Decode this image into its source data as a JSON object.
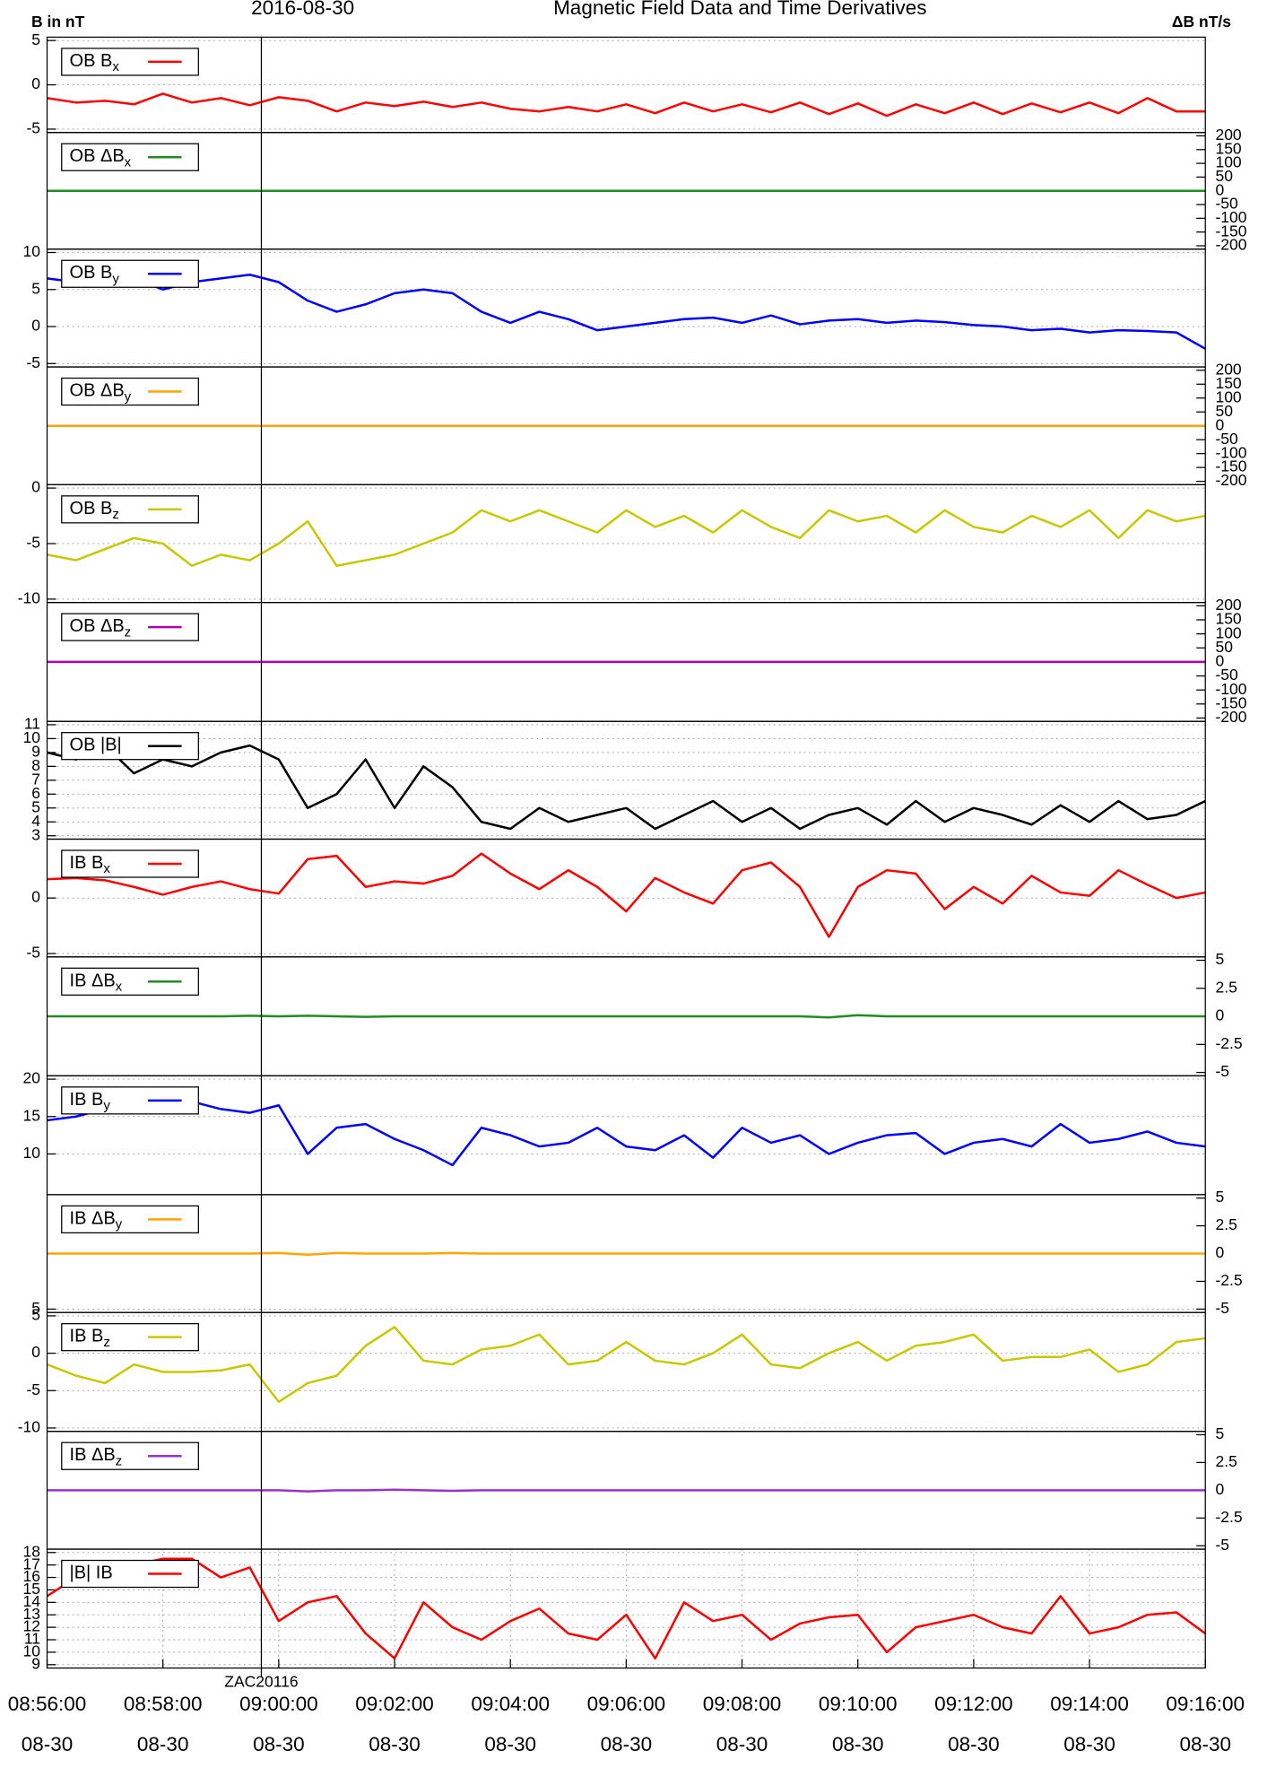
{
  "chart_data": {
    "type": "line",
    "date": "2016-08-30",
    "title": "Magnetic Field Data and Time Derivatives",
    "ylabel": "B in nT",
    "y2label": "ΔB nT/s",
    "x": [
      "08:56:00",
      "08:56:30",
      "08:57:00",
      "08:57:30",
      "08:58:00",
      "08:58:30",
      "08:59:00",
      "08:59:30",
      "09:00:00",
      "09:00:30",
      "09:01:00",
      "09:01:30",
      "09:02:00",
      "09:02:30",
      "09:03:00",
      "09:03:30",
      "09:04:00",
      "09:04:30",
      "09:05:00",
      "09:05:30",
      "09:06:00",
      "09:06:30",
      "09:07:00",
      "09:07:30",
      "09:08:00",
      "09:08:30",
      "09:09:00",
      "09:09:30",
      "09:10:00",
      "09:10:30",
      "09:11:00",
      "09:11:30",
      "09:12:00",
      "09:12:30",
      "09:13:00",
      "09:13:30",
      "09:14:00",
      "09:14:30",
      "09:15:00",
      "09:15:30",
      "09:16:00"
    ],
    "xlim": [
      "08:56:00",
      "09:16:00"
    ],
    "xticks": [
      "08:56:00",
      "08:58:00",
      "09:00:00",
      "09:02:00",
      "09:04:00",
      "09:06:00",
      "09:08:00",
      "09:10:00",
      "09:12:00",
      "09:14:00",
      "09:16:00"
    ],
    "xtick_date": "08-30",
    "annotation": {
      "x": "08:59:42",
      "label": "ZAC20116"
    },
    "grid": true,
    "panels": [
      {
        "ylim": [
          -5,
          5
        ],
        "yticks": [
          -5,
          0,
          5
        ],
        "series": [
          {
            "name": "OB B",
            "subscript": "x",
            "color": "#ff0000",
            "values": [
              -1.5,
              -2,
              -1.8,
              -2.2,
              -1,
              -2,
              -1.5,
              -2.3,
              -1.4,
              -1.8,
              -3,
              -2,
              -2.4,
              -1.9,
              -2.5,
              -2,
              -2.7,
              -3,
              -2.5,
              -3,
              -2.2,
              -3.2,
              -2,
              -3,
              -2.2,
              -3.1,
              -2,
              -3.3,
              -2.1,
              -3.5,
              -2.2,
              -3.2,
              -2,
              -3.3,
              -2.1,
              -3.1,
              -2,
              -3.2,
              -1.5,
              -3,
              -3
            ]
          }
        ]
      },
      {
        "y2lim": [
          -200,
          200
        ],
        "y2ticks": [
          -200,
          -150,
          -100,
          -50,
          0,
          50,
          100,
          150,
          200
        ],
        "series": [
          {
            "name": "OB ΔB",
            "subscript": "x",
            "color": "#228b22",
            "axis": "y2",
            "values": [
              0,
              0,
              0,
              0,
              0,
              0,
              0,
              0,
              0,
              0,
              0,
              0,
              0,
              0,
              0,
              0,
              0,
              0,
              0,
              0,
              0,
              0,
              0,
              0,
              0,
              0,
              0,
              0,
              0,
              0,
              0,
              0,
              0,
              0,
              0,
              0,
              0,
              0,
              0,
              0,
              0
            ]
          }
        ]
      },
      {
        "ylim": [
          -5,
          10
        ],
        "yticks": [
          -5,
          0,
          5,
          10
        ],
        "series": [
          {
            "name": "OB B",
            "subscript": "y",
            "color": "#0000ff",
            "values": [
              6.5,
              6,
              5.5,
              6.5,
              5,
              6,
              6.5,
              7,
              6,
              3.5,
              2,
              3,
              4.5,
              5,
              4.5,
              2,
              0.5,
              2,
              1,
              -0.5,
              0,
              0.5,
              1,
              1.2,
              0.5,
              1.5,
              0.3,
              0.8,
              1,
              0.5,
              0.8,
              0.6,
              0.2,
              0,
              -0.5,
              -0.3,
              -0.8,
              -0.5,
              -0.6,
              -0.8,
              -3
            ]
          }
        ]
      },
      {
        "y2lim": [
          -200,
          200
        ],
        "y2ticks": [
          -200,
          -150,
          -100,
          -50,
          0,
          50,
          100,
          150,
          200
        ],
        "series": [
          {
            "name": "OB ΔB",
            "subscript": "y",
            "color": "#ffa500",
            "axis": "y2",
            "values": [
              0,
              0,
              0,
              0,
              0,
              0,
              0,
              0,
              0,
              0,
              0,
              0,
              0,
              0,
              0,
              0,
              0,
              0,
              0,
              0,
              0,
              0,
              0,
              0,
              0,
              0,
              0,
              0,
              0,
              0,
              0,
              0,
              0,
              0,
              0,
              0,
              0,
              0,
              0,
              0,
              0
            ]
          }
        ]
      },
      {
        "ylim": [
          -10,
          0
        ],
        "yticks": [
          -10,
          -5,
          0
        ],
        "series": [
          {
            "name": "OB B",
            "subscript": "z",
            "color": "#c8c800",
            "values": [
              -6,
              -6.5,
              -5.5,
              -4.5,
              -5,
              -7,
              -6,
              -6.5,
              -5,
              -3,
              -7,
              -6.5,
              -6,
              -5,
              -4,
              -2,
              -3,
              -2,
              -3,
              -4,
              -2,
              -3.5,
              -2.5,
              -4,
              -2,
              -3.5,
              -4.5,
              -2,
              -3,
              -2.5,
              -4,
              -2,
              -3.5,
              -4,
              -2.5,
              -3.5,
              -2,
              -4.5,
              -2,
              -3,
              -2.5
            ]
          }
        ]
      },
      {
        "y2lim": [
          -200,
          200
        ],
        "y2ticks": [
          -200,
          -150,
          -100,
          -50,
          0,
          50,
          100,
          150,
          200
        ],
        "series": [
          {
            "name": "OB ΔB",
            "subscript": "z",
            "color": "#b000b0",
            "axis": "y2",
            "values": [
              0,
              0,
              0,
              0,
              0,
              0,
              0,
              0,
              0,
              0,
              0,
              0,
              0,
              0,
              0,
              0,
              0,
              0,
              0,
              0,
              0,
              0,
              0,
              0,
              0,
              0,
              0,
              0,
              0,
              0,
              0,
              0,
              0,
              0,
              0,
              0,
              0,
              0,
              0,
              0,
              0
            ]
          }
        ]
      },
      {
        "ylim": [
          3,
          11
        ],
        "yticks": [
          3,
          4,
          5,
          6,
          7,
          8,
          9,
          10,
          11
        ],
        "series": [
          {
            "name": "OB |B|",
            "color": "#000000",
            "values": [
              9,
              8.5,
              9.5,
              7.5,
              8.5,
              8,
              9,
              9.5,
              8.5,
              5,
              6,
              8.5,
              5,
              8,
              6.5,
              4,
              3.5,
              5,
              4,
              4.5,
              5,
              3.5,
              4.5,
              5.5,
              4,
              5,
              3.5,
              4.5,
              5,
              3.8,
              5.5,
              4,
              5,
              4.5,
              3.8,
              5.2,
              4,
              5.5,
              4.2,
              4.5,
              5.5
            ]
          }
        ]
      },
      {
        "ylim": [
          -5,
          5
        ],
        "yticks": [
          -5,
          0
        ],
        "series": [
          {
            "name": "IB B",
            "subscript": "x",
            "color": "#ff0000",
            "values": [
              1.7,
              1.8,
              1.6,
              1.0,
              0.3,
              1.0,
              1.5,
              0.8,
              0.4,
              3.5,
              3.8,
              1.0,
              1.5,
              1.3,
              2.0,
              4.0,
              2.2,
              0.8,
              2.5,
              1.0,
              -1.2,
              1.8,
              0.5,
              -0.5,
              2.5,
              3.2,
              1.0,
              -3.5,
              1.0,
              2.5,
              2.2,
              -1.0,
              1.0,
              -0.5,
              2.0,
              0.5,
              0.2,
              2.5,
              1.2,
              0.0,
              0.5
            ]
          }
        ]
      },
      {
        "y2lim": [
          -5,
          5
        ],
        "y2ticks": [
          -5,
          -2.5,
          0,
          2.5,
          5
        ],
        "series": [
          {
            "name": "IB ΔB",
            "subscript": "x",
            "color": "#228b22",
            "axis": "y2",
            "values": [
              0,
              0,
              0,
              0,
              0,
              0,
              0,
              0.05,
              0,
              0.05,
              0,
              -0.05,
              0,
              0,
              0,
              0,
              0,
              0,
              0,
              0,
              0,
              0,
              0,
              0,
              0,
              0,
              0,
              -0.1,
              0.1,
              0,
              0,
              0,
              0,
              0,
              0,
              0,
              0,
              0,
              0,
              0,
              0
            ]
          }
        ]
      },
      {
        "ylim": [
          5,
          20
        ],
        "yticks": [
          10,
          15,
          20
        ],
        "series": [
          {
            "name": "IB B",
            "subscript": "y",
            "color": "#0000ff",
            "values": [
              14.5,
              15,
              16,
              16.5,
              17,
              17,
              16,
              15.5,
              16.5,
              10,
              13.5,
              14,
              12,
              10.5,
              8.5,
              13.5,
              12.5,
              11,
              11.5,
              13.5,
              11,
              10.5,
              12.5,
              9.5,
              13.5,
              11.5,
              12.5,
              10,
              11.5,
              12.5,
              12.8,
              10,
              11.5,
              12,
              11,
              14,
              11.5,
              12,
              13,
              11.5,
              11
            ]
          }
        ]
      },
      {
        "ylim": [
          5,
          20
        ],
        "yticks": [
          5
        ],
        "y2lim": [
          -5,
          5
        ],
        "y2ticks": [
          -5,
          -2.5,
          0,
          2.5,
          5
        ],
        "series": [
          {
            "name": "IB ΔB",
            "subscript": "y",
            "color": "#ffa500",
            "axis": "y2",
            "values": [
              0,
              0,
              0,
              0,
              0,
              0,
              0,
              0,
              0.05,
              -0.1,
              0.05,
              0,
              0,
              0,
              0.05,
              0,
              0,
              0,
              0,
              0,
              0,
              0,
              0,
              0,
              0,
              0,
              0,
              0,
              0,
              0,
              0,
              0,
              0,
              0,
              0,
              0,
              0,
              0,
              0,
              0,
              0
            ]
          }
        ]
      },
      {
        "ylim": [
          -10,
          5
        ],
        "yticks": [
          -10,
          -5,
          0,
          5
        ],
        "series": [
          {
            "name": "IB B",
            "subscript": "z",
            "color": "#c8c800",
            "values": [
              -1.5,
              -3,
              -4,
              -1.5,
              -2.5,
              -2.5,
              -2.3,
              -1.5,
              -6.5,
              -4,
              -3,
              1,
              3.5,
              -1,
              -1.5,
              0.5,
              1,
              2.5,
              -1.5,
              -1,
              1.5,
              -1,
              -1.5,
              0,
              2.5,
              -1.5,
              -2,
              0,
              1.5,
              -1,
              1,
              1.5,
              2.5,
              -1,
              -0.5,
              -0.5,
              0.5,
              -2.5,
              -1.5,
              1.5,
              2
            ]
          }
        ]
      },
      {
        "y2lim": [
          -5,
          5
        ],
        "y2ticks": [
          -5,
          -2.5,
          0,
          2.5,
          5
        ],
        "series": [
          {
            "name": "IB ΔB",
            "subscript": "z",
            "color": "#9932cc",
            "axis": "y2",
            "values": [
              0,
              0,
              0,
              0,
              0,
              0,
              0,
              0,
              0,
              -0.1,
              0,
              0,
              0.05,
              0,
              -0.05,
              0,
              0,
              0,
              0,
              0,
              0,
              0,
              0,
              0,
              0,
              0,
              0,
              0,
              0,
              0,
              0,
              0,
              0,
              0,
              0,
              0,
              0,
              0,
              0,
              0,
              0
            ]
          }
        ]
      },
      {
        "ylim": [
          9,
          18
        ],
        "yticks": [
          9,
          10,
          11,
          12,
          13,
          14,
          15,
          16,
          17,
          18
        ],
        "xgrid": true,
        "series": [
          {
            "name": "|B| IB",
            "color": "#ff0000",
            "values": [
              14.5,
              16,
              16.5,
              17,
              17.5,
              17.5,
              16,
              16.8,
              12.5,
              14,
              14.5,
              11.5,
              9.5,
              14,
              12,
              11,
              12.5,
              13.5,
              11.5,
              11,
              13,
              9.5,
              14,
              12.5,
              13,
              11,
              12.3,
              12.8,
              13,
              10,
              12,
              12.5,
              13,
              12,
              11.5,
              14.5,
              11.5,
              12,
              13,
              13.2,
              11.5
            ]
          }
        ]
      }
    ]
  }
}
